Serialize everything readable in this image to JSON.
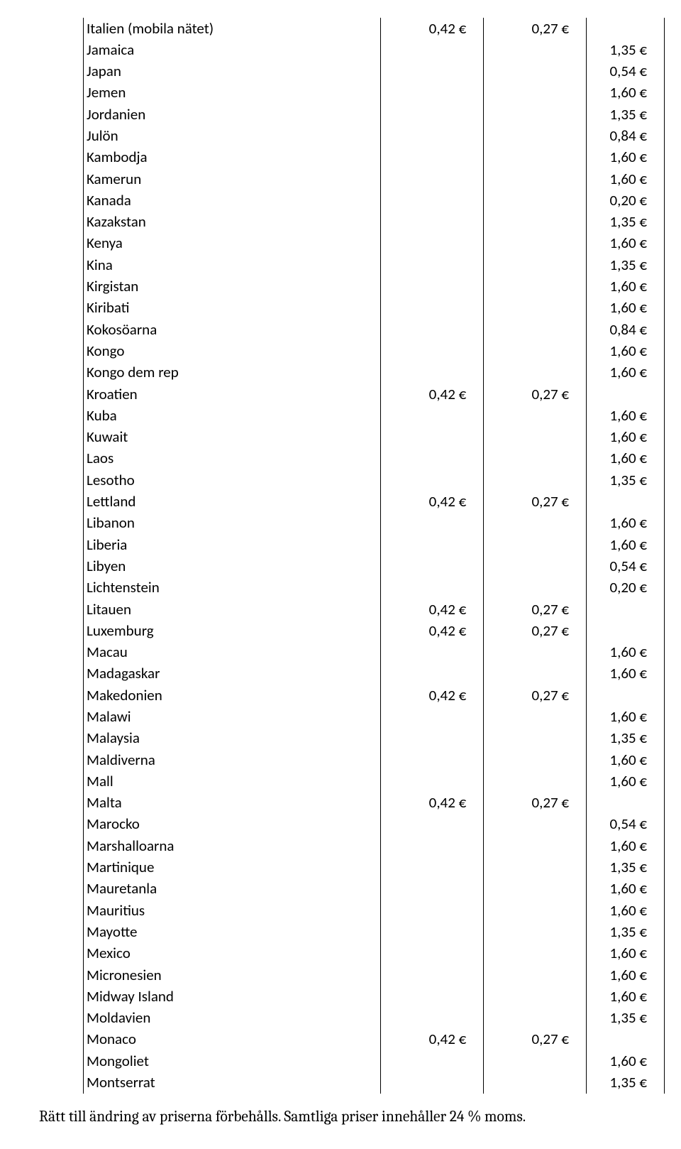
{
  "footnote": "Rätt till ändring av priserna förbehålls. Samtliga priser innehåller 24 % moms.",
  "rows": [
    {
      "country": "Italien (mobila nätet)",
      "c1": "0,42 €",
      "c2": "0,27 €",
      "c3": ""
    },
    {
      "country": "Jamaica",
      "c1": "",
      "c2": "",
      "c3": "1,35 €"
    },
    {
      "country": "Japan",
      "c1": "",
      "c2": "",
      "c3": "0,54 €"
    },
    {
      "country": "Jemen",
      "c1": "",
      "c2": "",
      "c3": "1,60 €"
    },
    {
      "country": "Jordanien",
      "c1": "",
      "c2": "",
      "c3": "1,35 €"
    },
    {
      "country": "Julön",
      "c1": "",
      "c2": "",
      "c3": "0,84 €"
    },
    {
      "country": "Kambodja",
      "c1": "",
      "c2": "",
      "c3": "1,60 €"
    },
    {
      "country": "Kamerun",
      "c1": "",
      "c2": "",
      "c3": "1,60 €"
    },
    {
      "country": "Kanada",
      "c1": "",
      "c2": "",
      "c3": "0,20 €"
    },
    {
      "country": "Kazakstan",
      "c1": "",
      "c2": "",
      "c3": "1,35 €"
    },
    {
      "country": "Kenya",
      "c1": "",
      "c2": "",
      "c3": "1,60 €"
    },
    {
      "country": "Kina",
      "c1": "",
      "c2": "",
      "c3": "1,35 €"
    },
    {
      "country": "Kirgistan",
      "c1": "",
      "c2": "",
      "c3": "1,60 €"
    },
    {
      "country": "Kiribati",
      "c1": "",
      "c2": "",
      "c3": "1,60 €"
    },
    {
      "country": "Kokosöarna",
      "c1": "",
      "c2": "",
      "c3": "0,84 €"
    },
    {
      "country": "Kongo",
      "c1": "",
      "c2": "",
      "c3": "1,60 €"
    },
    {
      "country": "Kongo dem rep",
      "c1": "",
      "c2": "",
      "c3": "1,60 €"
    },
    {
      "country": "Kroatien",
      "c1": "0,42 €",
      "c2": "0,27 €",
      "c3": ""
    },
    {
      "country": "Kuba",
      "c1": "",
      "c2": "",
      "c3": "1,60 €"
    },
    {
      "country": "Kuwait",
      "c1": "",
      "c2": "",
      "c3": "1,60 €"
    },
    {
      "country": "Laos",
      "c1": "",
      "c2": "",
      "c3": "1,60 €"
    },
    {
      "country": "Lesotho",
      "c1": "",
      "c2": "",
      "c3": "1,35 €"
    },
    {
      "country": "Lettland",
      "c1": "0,42 €",
      "c2": "0,27 €",
      "c3": ""
    },
    {
      "country": "Libanon",
      "c1": "",
      "c2": "",
      "c3": "1,60 €"
    },
    {
      "country": "Liberia",
      "c1": "",
      "c2": "",
      "c3": "1,60 €"
    },
    {
      "country": "Libyen",
      "c1": "",
      "c2": "",
      "c3": "0,54 €"
    },
    {
      "country": "Lichtenstein",
      "c1": "",
      "c2": "",
      "c3": "0,20 €"
    },
    {
      "country": "Litauen",
      "c1": "0,42 €",
      "c2": "0,27 €",
      "c3": ""
    },
    {
      "country": "Luxemburg",
      "c1": "0,42 €",
      "c2": "0,27 €",
      "c3": ""
    },
    {
      "country": "Macau",
      "c1": "",
      "c2": "",
      "c3": "1,60 €"
    },
    {
      "country": "Madagaskar",
      "c1": "",
      "c2": "",
      "c3": "1,60 €"
    },
    {
      "country": "Makedonien",
      "c1": "0,42 €",
      "c2": "0,27 €",
      "c3": ""
    },
    {
      "country": "Malawi",
      "c1": "",
      "c2": "",
      "c3": "1,60 €"
    },
    {
      "country": "Malaysia",
      "c1": "",
      "c2": "",
      "c3": "1,35 €"
    },
    {
      "country": "Maldiverna",
      "c1": "",
      "c2": "",
      "c3": "1,60 €"
    },
    {
      "country": "Mall",
      "c1": "",
      "c2": "",
      "c3": "1,60 €"
    },
    {
      "country": "Malta",
      "c1": "0,42 €",
      "c2": "0,27 €",
      "c3": ""
    },
    {
      "country": "Marocko",
      "c1": "",
      "c2": "",
      "c3": "0,54 €"
    },
    {
      "country": "Marshalloarna",
      "c1": "",
      "c2": "",
      "c3": "1,60 €"
    },
    {
      "country": "Martinique",
      "c1": "",
      "c2": "",
      "c3": "1,35 €"
    },
    {
      "country": "Mauretanla",
      "c1": "",
      "c2": "",
      "c3": "1,60 €"
    },
    {
      "country": "Mauritius",
      "c1": "",
      "c2": "",
      "c3": "1,60 €"
    },
    {
      "country": "Mayotte",
      "c1": "",
      "c2": "",
      "c3": "1,35 €"
    },
    {
      "country": "Mexico",
      "c1": "",
      "c2": "",
      "c3": "1,60 €"
    },
    {
      "country": "Micronesien",
      "c1": "",
      "c2": "",
      "c3": "1,60 €"
    },
    {
      "country": "Midway Island",
      "c1": "",
      "c2": "",
      "c3": "1,60 €"
    },
    {
      "country": "Moldavien",
      "c1": "",
      "c2": "",
      "c3": "1,35 €"
    },
    {
      "country": "Monaco",
      "c1": "0,42 €",
      "c2": "0,27 €",
      "c3": ""
    },
    {
      "country": "Mongoliet",
      "c1": "",
      "c2": "",
      "c3": "1,60 €"
    },
    {
      "country": "Montserrat",
      "c1": "",
      "c2": "",
      "c3": "1,35 €"
    }
  ]
}
